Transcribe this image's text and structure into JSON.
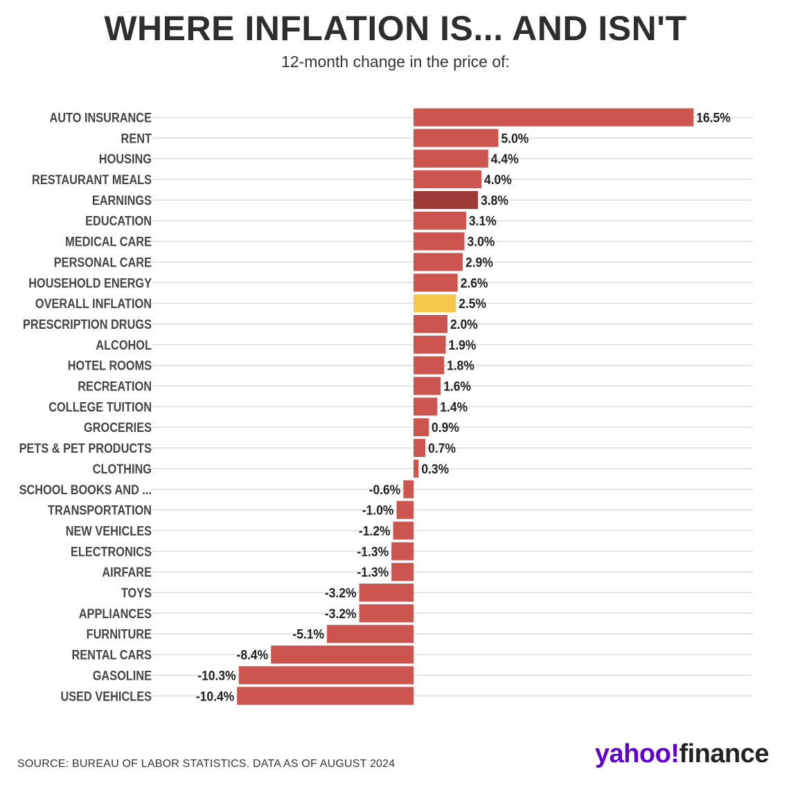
{
  "title": "WHERE INFLATION IS... AND ISN'T",
  "subtitle": "12-month change in the price of:",
  "source": "SOURCE: BUREAU OF LABOR STATISTICS. DATA AS OF AUGUST 2024",
  "logo": {
    "brand": "yahoo!",
    "product": "finance"
  },
  "colors": {
    "default": "#cc5550",
    "earnings": "#9e3a35",
    "overall": "#f5c84c",
    "grid": "#dcdcdc"
  },
  "chart_data": {
    "type": "bar",
    "orientation": "horizontal",
    "title": "WHERE INFLATION IS... AND ISN'T",
    "subtitle": "12-month change in the price of:",
    "categories": [
      "AUTO INSURANCE",
      "RENT",
      "HOUSING",
      "RESTAURANT MEALS",
      "EARNINGS",
      "EDUCATION",
      "MEDICAL CARE",
      "PERSONAL CARE",
      "HOUSEHOLD ENERGY",
      "OVERALL INFLATION",
      "PRESCRIPTION DRUGS",
      "ALCOHOL",
      "HOTEL ROOMS",
      "RECREATION",
      "COLLEGE TUITION",
      "GROCERIES",
      "PETS & PET PRODUCTS",
      "CLOTHING",
      "SCHOOL BOOKS AND ...",
      "TRANSPORTATION",
      "NEW VEHICLES",
      "ELECTRONICS",
      "AIRFARE",
      "TOYS",
      "APPLIANCES",
      "FURNITURE",
      "RENTAL CARS",
      "GASOLINE",
      "USED VEHICLES"
    ],
    "values": [
      16.5,
      5.0,
      4.4,
      4.0,
      3.8,
      3.1,
      3.0,
      2.9,
      2.6,
      2.5,
      2.0,
      1.9,
      1.8,
      1.6,
      1.4,
      0.9,
      0.7,
      0.3,
      -0.6,
      -1.0,
      -1.2,
      -1.3,
      -1.3,
      -3.2,
      -3.2,
      -5.1,
      -8.4,
      -10.3,
      -10.4
    ],
    "labels": [
      "16.5%",
      "5.0%",
      "4.4%",
      "4.0%",
      "3.8%",
      "3.1%",
      "3.0%",
      "2.9%",
      "2.6%",
      "2.5%",
      "2.0%",
      "1.9%",
      "1.8%",
      "1.6%",
      "1.4%",
      "0.9%",
      "0.7%",
      "0.3%",
      "-0.6%",
      "-1.0%",
      "-1.2%",
      "-1.3%",
      "-1.3%",
      "-3.2%",
      "-3.2%",
      "-5.1%",
      "-8.4%",
      "-10.3%",
      "-10.4%"
    ],
    "highlight": {
      "EARNINGS": "earnings",
      "OVERALL INFLATION": "overall"
    },
    "unit": "%",
    "xlim": [
      -10.4,
      16.5
    ],
    "grid": true
  }
}
